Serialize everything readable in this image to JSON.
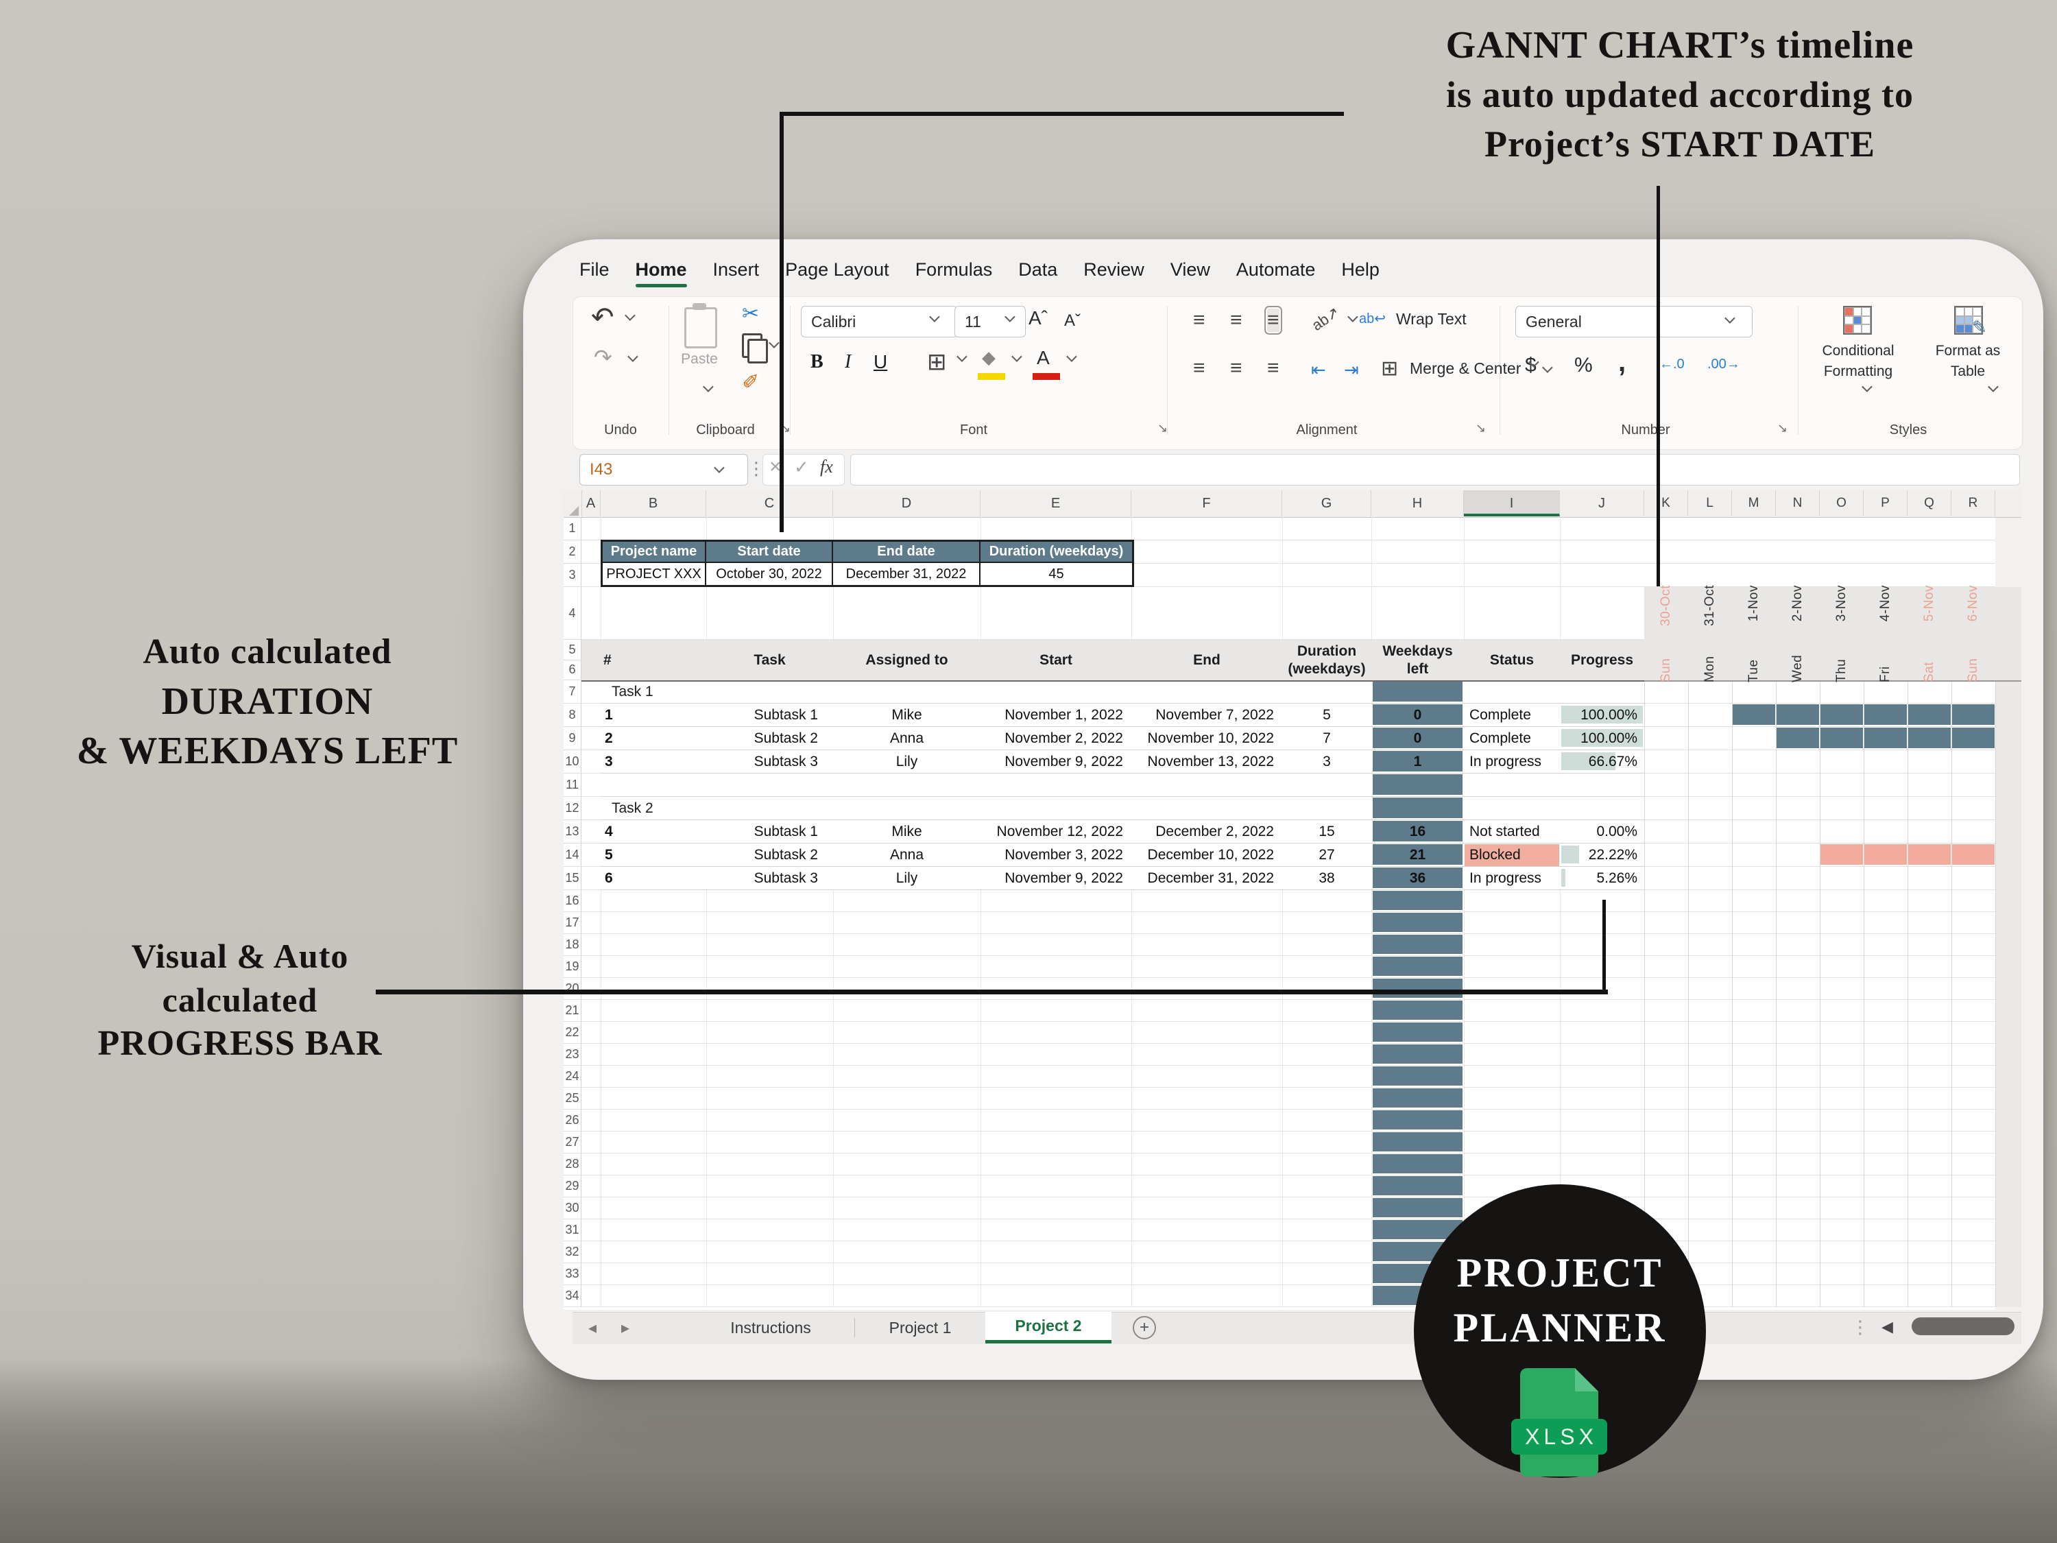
{
  "annotations": {
    "gantt": {
      "lines": [
        "GANNT CHART’s timeline",
        "is auto updated according to",
        "Project’s START DATE"
      ]
    },
    "duration": {
      "lines": [
        "Auto calculated",
        "DURATION",
        "& WEEKDAYS LEFT"
      ]
    },
    "progress": {
      "lines": [
        "Visual & Auto",
        "calculated",
        "PROGRESS BAR"
      ]
    }
  },
  "menu": {
    "items": [
      "File",
      "Home",
      "Insert",
      "Page Layout",
      "Formulas",
      "Data",
      "Review",
      "View",
      "Automate",
      "Help"
    ],
    "active": "Home"
  },
  "ribbon": {
    "groups": {
      "undo": "Undo",
      "clipboard": "Clipboard",
      "font": "Font",
      "alignment": "Alignment",
      "number": "Number",
      "styles": "Styles"
    },
    "paste_label": "Paste",
    "font_name": "Calibri",
    "font_size": "11",
    "bold": "B",
    "italic": "I",
    "underline": "U",
    "wrap_text": "Wrap Text",
    "merge_center": "Merge & Center",
    "number_format": "General",
    "conditional_formatting_1": "Conditional",
    "conditional_formatting_2": "Formatting",
    "format_as_table_1": "Format as",
    "format_as_table_2": "Table"
  },
  "formula_bar": {
    "name_box": "I43",
    "fx": "fx"
  },
  "sheet": {
    "columns": [
      "A",
      "B",
      "C",
      "D",
      "E",
      "F",
      "G",
      "H",
      "I",
      "J"
    ],
    "gantt_columns": [
      "K",
      "L",
      "M",
      "N",
      "O",
      "P",
      "Q",
      "R"
    ],
    "selected_column": "I",
    "row_count": 34
  },
  "project_table": {
    "headers": [
      "Project name",
      "Start date",
      "End date",
      "Duration (weekdays)"
    ],
    "values": [
      "PROJECT XXX",
      "October 30, 2022",
      "December 31, 2022",
      "45"
    ]
  },
  "task_table": {
    "headers": {
      "num": "#",
      "task": "Task",
      "assigned": "Assigned to",
      "start": "Start",
      "end": "End",
      "duration1": "Duration",
      "duration2": "(weekdays)",
      "weekdays1": "Weekdays",
      "weekdays2": "left",
      "status": "Status",
      "progress": "Progress"
    },
    "groups": [
      {
        "label": "Task 1",
        "row": 7
      },
      {
        "label": "Task 2",
        "row": 12
      }
    ],
    "tasks": [
      {
        "row": 8,
        "num": "1",
        "task": "Subtask 1",
        "assigned": "Mike",
        "start": "November 1, 2022",
        "end": "November 7, 2022",
        "duration": "5",
        "weekdays_left": "0",
        "status": "Complete",
        "progress": "100.00%",
        "progress_pct": 100,
        "blocked": false
      },
      {
        "row": 9,
        "num": "2",
        "task": "Subtask 2",
        "assigned": "Anna",
        "start": "November 2, 2022",
        "end": "November 10, 2022",
        "duration": "7",
        "weekdays_left": "0",
        "status": "Complete",
        "progress": "100.00%",
        "progress_pct": 100,
        "blocked": false
      },
      {
        "row": 10,
        "num": "3",
        "task": "Subtask 3",
        "assigned": "Lily",
        "start": "November 9, 2022",
        "end": "November 13, 2022",
        "duration": "3",
        "weekdays_left": "1",
        "status": "In progress",
        "progress": "66.67%",
        "progress_pct": 66.67,
        "blocked": false
      },
      {
        "row": 13,
        "num": "4",
        "task": "Subtask 1",
        "assigned": "Mike",
        "start": "November 12, 2022",
        "end": "December 2, 2022",
        "duration": "15",
        "weekdays_left": "16",
        "status": "Not started",
        "progress": "0.00%",
        "progress_pct": 0,
        "blocked": false
      },
      {
        "row": 14,
        "num": "5",
        "task": "Subtask 2",
        "assigned": "Anna",
        "start": "November 3, 2022",
        "end": "December 10, 2022",
        "duration": "27",
        "weekdays_left": "21",
        "status": "Blocked",
        "progress": "22.22%",
        "progress_pct": 22.22,
        "blocked": true
      },
      {
        "row": 15,
        "num": "6",
        "task": "Subtask 3",
        "assigned": "Lily",
        "start": "November 9, 2022",
        "end": "December 31, 2022",
        "duration": "38",
        "weekdays_left": "36",
        "status": "In progress",
        "progress": "5.26%",
        "progress_pct": 5.26,
        "blocked": false
      }
    ]
  },
  "gantt": {
    "dates": [
      {
        "day": "Sun",
        "date": "30-Oct",
        "weekend": true
      },
      {
        "day": "Mon",
        "date": "31-Oct",
        "weekend": false
      },
      {
        "day": "Tue",
        "date": "1-Nov",
        "weekend": false
      },
      {
        "day": "Wed",
        "date": "2-Nov",
        "weekend": false
      },
      {
        "day": "Thu",
        "date": "3-Nov",
        "weekend": false
      },
      {
        "day": "Fri",
        "date": "4-Nov",
        "weekend": false
      },
      {
        "day": "Sat",
        "date": "5-Nov",
        "weekend": true
      },
      {
        "day": "Sun",
        "date": "6-Nov",
        "weekend": true
      }
    ],
    "bars": [
      {
        "row": 8,
        "start": 2,
        "span": 6,
        "color": "slate"
      },
      {
        "row": 9,
        "start": 3,
        "span": 5,
        "color": "slate"
      },
      {
        "row": 14,
        "start": 4,
        "span": 4,
        "color": "salmon"
      }
    ]
  },
  "tabs": {
    "items": [
      "Instructions",
      "Project 1",
      "Project 2"
    ],
    "active": "Project 2"
  },
  "badge": {
    "line1": "PROJECT",
    "line2": "PLANNER",
    "file_type": "XLSX"
  },
  "icons": {
    "scissors": "✂",
    "format_painter": "✐",
    "undo": "↶",
    "redo": "↷",
    "border": "⊞",
    "merge": "⊞",
    "fill_diamond": "◆",
    "dots_vertical": "⋮",
    "launcher": "↘",
    "close": "×",
    "check": "✓",
    "nav_left": "◂",
    "nav_right": "▸",
    "scroll_left": "◀",
    "align_lines": "≡",
    "wrap_return": "↩",
    "indent_left": "⇤",
    "indent_right": "⇥",
    "dollar": "$",
    "percent": "%",
    "comma": ",",
    "dec_inc": "←.0",
    "dec_dec": ".00→",
    "plus": "+",
    "pencil": "✎",
    "size_up": "ˆ",
    "size_down": "ˇ",
    "ab": "ab",
    "select_all": ""
  },
  "colors": {
    "slate": "#5e7b8b",
    "salmon": "#f2ab9d",
    "blocked_bg": "#f1ad9e",
    "bar_fill": "#cfddd9",
    "weekend_text": "#e9a294",
    "weekday_text": "#333333",
    "excel_green": "#1e7145",
    "name_box_text": "#c2661c"
  }
}
